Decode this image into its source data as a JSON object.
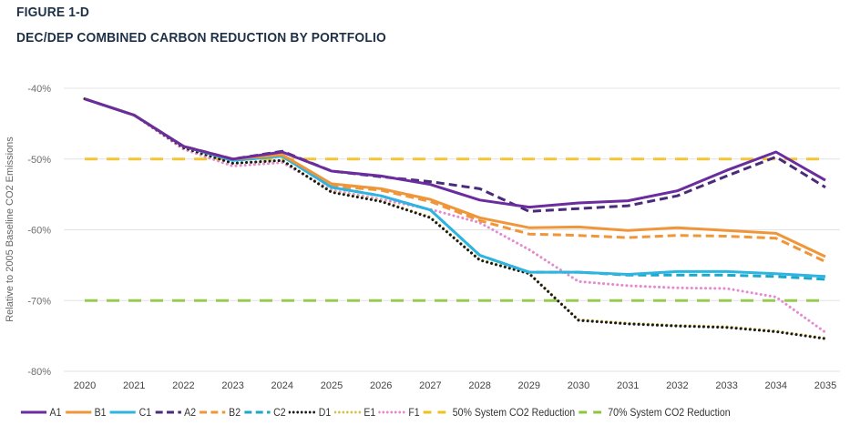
{
  "figure_label": "FIGURE 1-D",
  "figure_title": "DEC/DEP COMBINED CARBON REDUCTION BY PORTFOLIO",
  "chart_data": {
    "type": "line",
    "title": "DEC/DEP COMBINED CARBON REDUCTION BY PORTFOLIO",
    "xlabel": "",
    "ylabel": "Relative to 2005 Baseline CO2 Emissions",
    "ylim": [
      -80,
      -40
    ],
    "yticks": [
      -40,
      -50,
      -60,
      -70,
      -80
    ],
    "ytick_labels": [
      "-40%",
      "-50%",
      "-60%",
      "-70%",
      "-80%"
    ],
    "grid": "horizontal",
    "legend_position": "bottom",
    "x": [
      "2020",
      "2021",
      "2022",
      "2023",
      "2024",
      "2025",
      "2026",
      "2027",
      "2028",
      "2029",
      "2030",
      "2031",
      "2032",
      "2033",
      "2034",
      "2035"
    ],
    "series": [
      {
        "name": "A1",
        "color": "#6a2c9e",
        "style": "solid",
        "values": [
          -41.5,
          -43.8,
          -48.2,
          -50.0,
          -49.0,
          -51.7,
          -52.4,
          -53.6,
          -55.8,
          -56.8,
          -56.2,
          -55.9,
          -54.5,
          -51.6,
          -49.0,
          -53.0
        ]
      },
      {
        "name": "B1",
        "color": "#f0963a",
        "style": "solid",
        "values": [
          -41.5,
          -43.8,
          -48.2,
          -50.0,
          -49.4,
          -53.5,
          -54.2,
          -55.7,
          -58.3,
          -59.7,
          -59.6,
          -60.1,
          -59.7,
          -60.1,
          -60.5,
          -63.8
        ]
      },
      {
        "name": "C1",
        "color": "#2eb4e0",
        "style": "solid",
        "values": [
          -41.5,
          -43.8,
          -48.2,
          -50.2,
          -49.6,
          -54.0,
          -55.2,
          -57.2,
          -63.6,
          -66.0,
          -66.0,
          -66.3,
          -65.9,
          -65.9,
          -66.2,
          -66.6
        ]
      },
      {
        "name": "A2",
        "color": "#4b2a7a",
        "style": "dashed",
        "values": [
          -41.5,
          -43.8,
          -48.2,
          -50.0,
          -48.9,
          -51.7,
          -52.5,
          -53.2,
          -54.2,
          -57.4,
          -57.0,
          -56.6,
          -55.2,
          -52.4,
          -49.7,
          -54.0
        ]
      },
      {
        "name": "B2",
        "color": "#f0963a",
        "style": "dashed",
        "values": [
          -41.5,
          -43.8,
          -48.2,
          -50.0,
          -49.4,
          -53.8,
          -54.4,
          -56.0,
          -58.7,
          -60.6,
          -60.8,
          -61.1,
          -60.8,
          -60.9,
          -61.2,
          -64.5
        ]
      },
      {
        "name": "C2",
        "color": "#1aa7c9",
        "style": "dashed",
        "values": [
          -41.5,
          -43.8,
          -48.2,
          -50.2,
          -49.6,
          -54.0,
          -55.2,
          -57.2,
          -63.6,
          -66.0,
          -66.0,
          -66.4,
          -66.4,
          -66.4,
          -66.6,
          -67.0
        ]
      },
      {
        "name": "D1",
        "color": "#1a1a1a",
        "style": "dotted",
        "values": [
          -41.5,
          -43.8,
          -48.4,
          -50.6,
          -50.2,
          -54.7,
          -56.0,
          -58.3,
          -64.3,
          -66.2,
          -72.8,
          -73.3,
          -73.6,
          -73.8,
          -74.4,
          -75.4
        ]
      },
      {
        "name": "E1",
        "color": "#d9c24a",
        "style": "dotted",
        "values": [
          -41.5,
          -43.8,
          -48.4,
          -50.6,
          -50.2,
          -54.6,
          -55.9,
          -58.2,
          -64.2,
          -66.1,
          -72.7,
          -73.2,
          -73.5,
          -73.7,
          -74.3,
          -75.3
        ]
      },
      {
        "name": "F1",
        "color": "#e58ad0",
        "style": "dotted",
        "values": [
          -41.5,
          -43.8,
          -48.6,
          -51.0,
          -50.5,
          -54.4,
          -55.7,
          -57.1,
          -59.0,
          -62.8,
          -67.3,
          -67.9,
          -68.2,
          -68.3,
          -69.5,
          -74.5
        ]
      },
      {
        "name": "50% System CO2 Reduction",
        "color": "#f2c01e",
        "style": "longdash",
        "values": [
          -50,
          -50,
          -50,
          -50,
          -50,
          -50,
          -50,
          -50,
          -50,
          -50,
          -50,
          -50,
          -50,
          -50,
          -50,
          -50
        ]
      },
      {
        "name": "70% System CO2 Reduction",
        "color": "#8cc63f",
        "style": "longdash",
        "values": [
          -70,
          -70,
          -70,
          -70,
          -70,
          -70,
          -70,
          -70,
          -70,
          -70,
          -70,
          -70,
          -70,
          -70,
          -70,
          -70
        ]
      }
    ]
  }
}
